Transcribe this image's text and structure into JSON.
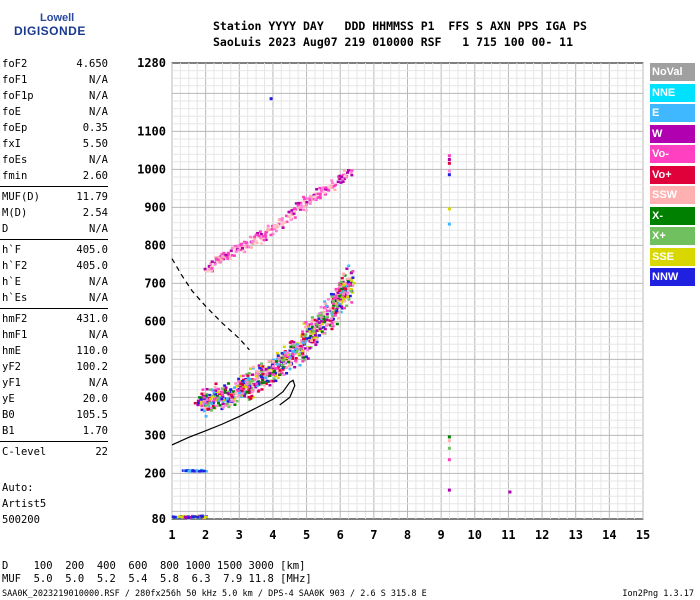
{
  "logo": {
    "line1": "Lowell",
    "line2": "DIGISONDE"
  },
  "header": {
    "row1": "Station YYYY DAY   DDD HHMMSS P1  FFS S AXN PPS IGA PS",
    "row2": "SaoLuis 2023 Aug07 219 010000 RSF   1 715 100 00- 11"
  },
  "params": [
    {
      "k": "foF2",
      "v": "4.650"
    },
    {
      "k": "foF1",
      "v": "N/A"
    },
    {
      "k": "foF1p",
      "v": "N/A"
    },
    {
      "k": "foE",
      "v": "N/A"
    },
    {
      "k": "foEp",
      "v": "0.35"
    },
    {
      "k": "fxI",
      "v": "5.50"
    },
    {
      "k": "foEs",
      "v": "N/A"
    },
    {
      "k": "fmin",
      "v": "2.60"
    },
    {
      "k": "MUF(D)",
      "v": "11.79"
    },
    {
      "k": "M(D)",
      "v": "2.54"
    },
    {
      "k": "D",
      "v": "N/A"
    },
    {
      "k": "h`F",
      "v": "405.0"
    },
    {
      "k": "h`F2",
      "v": "405.0"
    },
    {
      "k": "h`E",
      "v": "N/A"
    },
    {
      "k": "h`Es",
      "v": "N/A"
    },
    {
      "k": "hmF2",
      "v": "431.0"
    },
    {
      "k": "hmF1",
      "v": "N/A"
    },
    {
      "k": "hmE",
      "v": "110.0"
    },
    {
      "k": "yF2",
      "v": "100.2"
    },
    {
      "k": "yF1",
      "v": "N/A"
    },
    {
      "k": "yE",
      "v": "20.0"
    },
    {
      "k": "B0",
      "v": "105.5"
    },
    {
      "k": "B1",
      "v": "1.70"
    },
    {
      "k": "C-level",
      "v": "22"
    }
  ],
  "auto": {
    "l1": "Auto:",
    "l2": "Artist5",
    "l3": "500200"
  },
  "footer": {
    "d_row": "D    100  200  400  600  800 1000 1500 3000 [km]",
    "muf_row": "MUF  5.0  5.0  5.2  5.4  5.8  6.3  7.9 11.8 [MHz]",
    "file_row": "SAA0K_2023219010000.RSF / 280fx256h 50 kHz 5.0 km / DPS-4 SAA0K 903 / 2.6 S 315.8 E",
    "version": "Ion2Png 1.3.17"
  },
  "legend": [
    {
      "label": "NoVal",
      "color": "#a0a0a0"
    },
    {
      "label": "NNE",
      "color": "#00e0ff"
    },
    {
      "label": "E",
      "color": "#40b8ff"
    },
    {
      "label": "W",
      "color": "#b000b0"
    },
    {
      "label": "Vo-",
      "color": "#ff40c0"
    },
    {
      "label": "Vo+",
      "color": "#e0003a"
    },
    {
      "label": "SSW",
      "color": "#ffb0b0"
    },
    {
      "label": "X-",
      "color": "#008000"
    },
    {
      "label": "X+",
      "color": "#70c060"
    },
    {
      "label": "SSE",
      "color": "#d8d800"
    },
    {
      "label": "NNW",
      "color": "#2020e0"
    }
  ],
  "chart_data": {
    "type": "scatter",
    "xlim": [
      1,
      15
    ],
    "ylim": [
      80,
      1280
    ],
    "x_ticks": [
      1,
      2,
      3,
      4,
      5,
      6,
      7,
      8,
      9,
      10,
      11,
      12,
      13,
      14,
      15
    ],
    "y_ticks": [
      80,
      200,
      300,
      400,
      500,
      600,
      700,
      800,
      900,
      1000,
      1100,
      1280
    ],
    "grid": true,
    "legend_placement": "right",
    "profile_line": [
      [
        1.0,
        275
      ],
      [
        1.5,
        295
      ],
      [
        2.0,
        312
      ],
      [
        2.5,
        330
      ],
      [
        3.0,
        350
      ],
      [
        3.5,
        372
      ],
      [
        4.0,
        395
      ],
      [
        4.3,
        415
      ],
      [
        4.5,
        440
      ],
      [
        4.6,
        445
      ],
      [
        4.65,
        431
      ],
      [
        4.5,
        400
      ],
      [
        4.2,
        380
      ]
    ],
    "extrapolation_dashed": [
      [
        1.0,
        765
      ],
      [
        1.3,
        720
      ],
      [
        1.6,
        680
      ],
      [
        2.0,
        640
      ],
      [
        2.5,
        595
      ],
      [
        3.0,
        555
      ],
      [
        3.3,
        525
      ]
    ],
    "f2_trace": [
      [
        1.8,
        390
      ],
      [
        2.2,
        400
      ],
      [
        2.6,
        410
      ],
      [
        3.0,
        425
      ],
      [
        3.4,
        445
      ],
      [
        3.8,
        465
      ],
      [
        4.2,
        490
      ],
      [
        4.6,
        520
      ],
      [
        5.0,
        560
      ],
      [
        5.4,
        600
      ],
      [
        5.8,
        640
      ],
      [
        6.1,
        680
      ],
      [
        6.2,
        720
      ]
    ],
    "multi_trace": [
      [
        1.9,
        740
      ],
      [
        2.3,
        760
      ],
      [
        2.7,
        780
      ],
      [
        3.1,
        800
      ],
      [
        3.5,
        820
      ],
      [
        3.9,
        845
      ],
      [
        4.3,
        870
      ],
      [
        4.7,
        900
      ],
      [
        5.1,
        925
      ],
      [
        5.5,
        950
      ],
      [
        5.9,
        975
      ],
      [
        6.3,
        995
      ]
    ],
    "low_trace": [
      [
        1.0,
        88
      ],
      [
        1.3,
        88
      ],
      [
        1.6,
        88
      ],
      [
        2.0,
        90
      ]
    ],
    "es_trace": [
      [
        1.3,
        210
      ],
      [
        1.6,
        210
      ],
      [
        2.0,
        210
      ]
    ],
    "spurious_x": 9.2
  }
}
